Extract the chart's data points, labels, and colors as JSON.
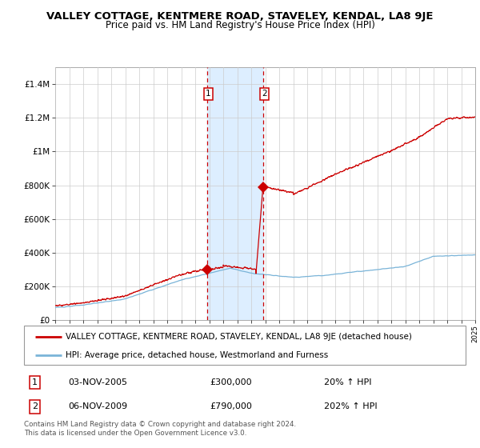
{
  "title": "VALLEY COTTAGE, KENTMERE ROAD, STAVELEY, KENDAL, LA8 9JE",
  "subtitle": "Price paid vs. HM Land Registry's House Price Index (HPI)",
  "x_start_year": 1995,
  "x_end_year": 2025,
  "ylim": [
    0,
    1500000
  ],
  "yticks": [
    0,
    200000,
    400000,
    600000,
    800000,
    1000000,
    1200000,
    1400000
  ],
  "ytick_labels": [
    "£0",
    "£200K",
    "£400K",
    "£600K",
    "£800K",
    "£1M",
    "£1.2M",
    "£1.4M"
  ],
  "hpi_color": "#7ab4d8",
  "price_color": "#cc0000",
  "sale1_date_num": 2005.84,
  "sale1_price": 300000,
  "sale2_date_num": 2009.84,
  "sale2_price": 790000,
  "shade_color": "#ddeeff",
  "dashed_color": "#cc0000",
  "legend_line1": "VALLEY COTTAGE, KENTMERE ROAD, STAVELEY, KENDAL, LA8 9JE (detached house)",
  "legend_line2": "HPI: Average price, detached house, Westmorland and Furness",
  "table_row1_num": "1",
  "table_row1_date": "03-NOV-2005",
  "table_row1_price": "£300,000",
  "table_row1_hpi": "20% ↑ HPI",
  "table_row2_num": "2",
  "table_row2_date": "06-NOV-2009",
  "table_row2_price": "£790,000",
  "table_row2_hpi": "202% ↑ HPI",
  "footnote": "Contains HM Land Registry data © Crown copyright and database right 2024.\nThis data is licensed under the Open Government Licence v3.0.",
  "title_fontsize": 9.5,
  "subtitle_fontsize": 8.5,
  "bg_color": "#ffffff"
}
